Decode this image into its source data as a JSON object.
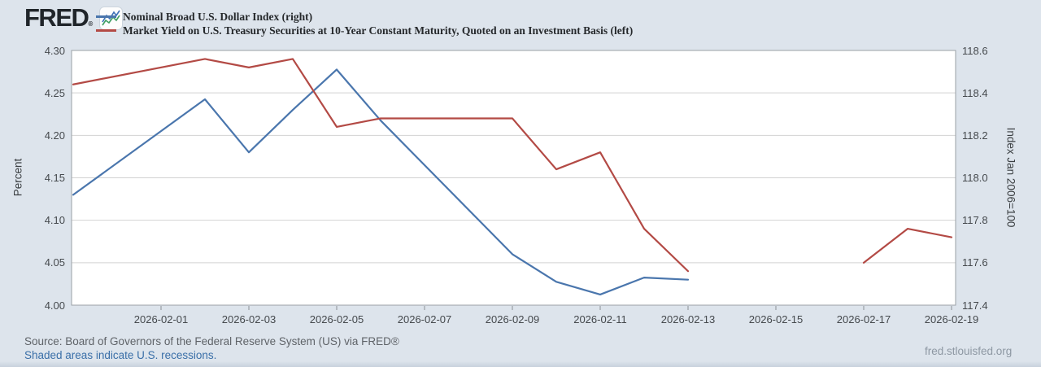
{
  "header": {
    "logo_text": "FRED",
    "logo_mark": "®"
  },
  "legend": {
    "items": [
      {
        "label": "Nominal Broad U.S. Dollar Index (right)"
      },
      {
        "label": "Market Yield on U.S. Treasury Securities at 10-Year Constant Maturity, Quoted on an Investment Basis (left)"
      }
    ]
  },
  "chart_data": {
    "type": "line",
    "title": "",
    "grid": "horizontal",
    "legend_position": "top-left",
    "left_axis": {
      "label": "Percent",
      "range": [
        4.0,
        4.3
      ],
      "ticks": [
        "4.30",
        "4.25",
        "4.20",
        "4.15",
        "4.10",
        "4.05",
        "4.00"
      ]
    },
    "right_axis": {
      "label": "Index Jan 2006=100",
      "range": [
        117.4,
        118.6
      ],
      "ticks": [
        "118.6",
        "118.4",
        "118.2",
        "118.0",
        "117.8",
        "117.6",
        "117.4"
      ]
    },
    "x_axis": {
      "tick_labels": [
        "2026-02-01",
        "2026-02-03",
        "2026-02-05",
        "2026-02-07",
        "2026-02-09",
        "2026-02-11",
        "2026-02-13",
        "2026-02-15",
        "2026-02-17",
        "2026-02-19"
      ]
    },
    "series": [
      {
        "name": "Nominal Broad U.S. Dollar Index (right)",
        "axis": "right",
        "color": "#4a76ad",
        "points": [
          [
            "2026-01-30",
            117.92
          ],
          [
            "2026-02-02",
            118.37
          ],
          [
            "2026-02-03",
            118.12
          ],
          [
            "2026-02-04",
            118.32
          ],
          [
            "2026-02-05",
            118.51
          ],
          [
            "2026-02-06",
            118.27
          ],
          [
            "2026-02-09",
            117.64
          ],
          [
            "2026-02-10",
            117.51
          ],
          [
            "2026-02-11",
            117.45
          ],
          [
            "2026-02-12",
            117.53
          ],
          [
            "2026-02-13",
            117.52
          ]
        ]
      },
      {
        "name": "Market Yield on U.S. Treasury Securities at 10-Year Constant Maturity, Quoted on an Investment Basis (left)",
        "axis": "left",
        "color": "#b34a45",
        "points": [
          [
            "2026-01-30",
            4.26
          ],
          [
            "2026-02-02",
            4.29
          ],
          [
            "2026-02-03",
            4.28
          ],
          [
            "2026-02-04",
            4.29
          ],
          [
            "2026-02-05",
            4.21
          ],
          [
            "2026-02-06",
            4.22
          ],
          [
            "2026-02-09",
            4.22
          ],
          [
            "2026-02-10",
            4.16
          ],
          [
            "2026-02-11",
            4.18
          ],
          [
            "2026-02-12",
            4.09
          ],
          [
            "2026-02-13",
            4.04
          ],
          [
            "2026-02-16",
            null
          ],
          [
            "2026-02-17",
            4.05
          ],
          [
            "2026-02-18",
            4.09
          ],
          [
            "2026-02-19",
            4.08
          ]
        ]
      }
    ]
  },
  "footer": {
    "source": "Source: Board of Governors of the Federal Reserve System (US) via FRED®",
    "recession_note": "Shaded areas indicate U.S. recessions.",
    "site": "fred.stlouisfed.org"
  }
}
